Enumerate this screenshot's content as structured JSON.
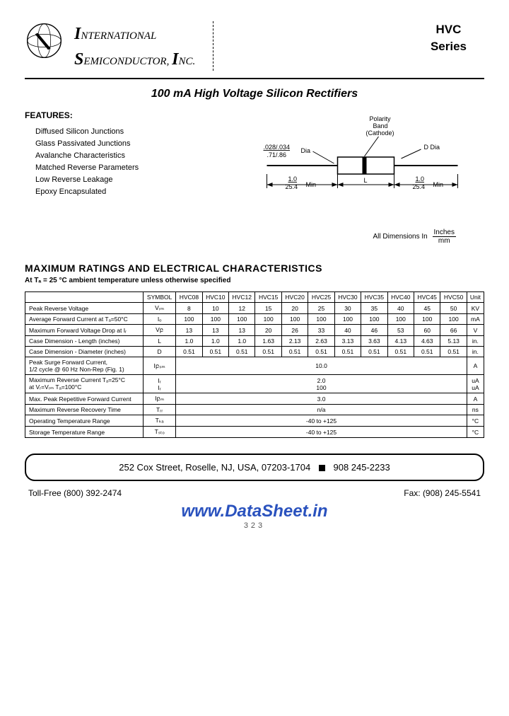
{
  "header": {
    "company_line1_cap": "I",
    "company_line1_rest": "NTERNATIONAL",
    "company_line2_cap": "S",
    "company_line2_rest": "EMICONDUCTOR, ",
    "company_line2_cap2": "I",
    "company_line2_rest2": "NC.",
    "series_line1": "HVC",
    "series_line2": "Series"
  },
  "title": "100 mA High Voltage Silicon Rectifiers",
  "features": {
    "heading": "FEATURES:",
    "items": [
      "Diffused Silicon Junctions",
      "Glass Passivated Junctions",
      "Avalanche Characteristics",
      "Matched Reverse Parameters",
      "Low Reverse Leakage",
      "Epoxy Encapsulated"
    ]
  },
  "diagram": {
    "polarity_label_1": "Polarity",
    "polarity_label_2": "Band",
    "polarity_label_3": "(Cathode)",
    "dia_frac_top": ".028/.034",
    "dia_frac_bot": ".71/.86",
    "dia_label": "Dia",
    "d_dia": "D Dia",
    "min_top": "1.0",
    "min_bot": "25.4",
    "min_label": "Min",
    "len_label": "L",
    "dim_note_prefix": "All Dimensions In",
    "dim_note_top": "Inches",
    "dim_note_bot": "mm"
  },
  "section": {
    "title": "MAXIMUM RATINGS AND ELECTRICAL CHARACTERISTICS",
    "subtitle": "At Tₐ = 25 °C ambient temperature unless otherwise specified"
  },
  "table": {
    "headers": [
      "SYMBOL",
      "HVC08",
      "HVC10",
      "HVC12",
      "HVC15",
      "HVC20",
      "HVC25",
      "HVC30",
      "HVC35",
      "HVC40",
      "HVC45",
      "HVC50",
      "Unit"
    ],
    "rows": [
      {
        "param": "Peak Reverse Voltage",
        "sym": "Vᵣₘ",
        "vals": [
          "8",
          "10",
          "12",
          "15",
          "20",
          "25",
          "30",
          "35",
          "40",
          "45",
          "50"
        ],
        "unit": "KV"
      },
      {
        "param": "Average Forward Current at Tₐ=50°C",
        "sym": "Iₒ",
        "vals": [
          "100",
          "100",
          "100",
          "100",
          "100",
          "100",
          "100",
          "100",
          "100",
          "100",
          "100"
        ],
        "unit": "mA"
      },
      {
        "param": "Maximum Forward Voltage Drop at Iᵣ",
        "sym": "Vբ",
        "vals": [
          "13",
          "13",
          "13",
          "20",
          "26",
          "33",
          "40",
          "46",
          "53",
          "60",
          "66"
        ],
        "unit": "V"
      },
      {
        "param": "Case Dimension - Length (inches)",
        "sym": "L",
        "vals": [
          "1.0",
          "1.0",
          "1.0",
          "1.63",
          "2.13",
          "2.63",
          "3.13",
          "3.63",
          "4.13",
          "4.63",
          "5.13"
        ],
        "unit": "in."
      },
      {
        "param": "Case Dimension - Diameter (inches)",
        "sym": "D",
        "vals": [
          "0.51",
          "0.51",
          "0.51",
          "0.51",
          "0.51",
          "0.51",
          "0.51",
          "0.51",
          "0.51",
          "0.51",
          "0.51"
        ],
        "unit": "in."
      },
      {
        "param": "Peak Surge Forward Current,\n1/2 cycle @ 60 Hz Non-Rep (Fig. 1)",
        "sym": "Iբₛₘ",
        "span": "10.0",
        "unit": "A"
      },
      {
        "param": "Maximum Reverse Current Tₐ=25°C\nat Vᵣ=Vᵣₘ           Tₐ=100°C",
        "sym": "Iᵣ\nIᵣ",
        "span": "2.0\n100",
        "unit": "uA\nuA"
      },
      {
        "param": "Max. Peak Repetitive Forward Current",
        "sym": "Iբₘ",
        "span": "3.0",
        "unit": "A"
      },
      {
        "param": "Maximum Reverse Recovery Time",
        "sym": "Tᵣᵣ",
        "span": "n/a",
        "unit": "ns"
      },
      {
        "param": "Operating Temperature Range",
        "sym": "Tₖₐ",
        "span": "-40 to +125",
        "unit": "°C"
      },
      {
        "param": "Storage Temperature Range",
        "sym": "Tₛₜₒ",
        "span": "-40 to +125",
        "unit": "°C"
      }
    ]
  },
  "address": "252 Cox Street, Roselle, NJ, USA, 07203-1704",
  "phone": "908 245-2233",
  "tollfree_label": "Toll-Free",
  "tollfree": "(800) 392-2474",
  "fax_label": "Fax:",
  "fax": "(908) 245-5541",
  "watermark": "www.DataSheet.in",
  "pagenum": "323",
  "colors": {
    "text": "#000000",
    "bg": "#ffffff",
    "link": "#2a52be"
  }
}
